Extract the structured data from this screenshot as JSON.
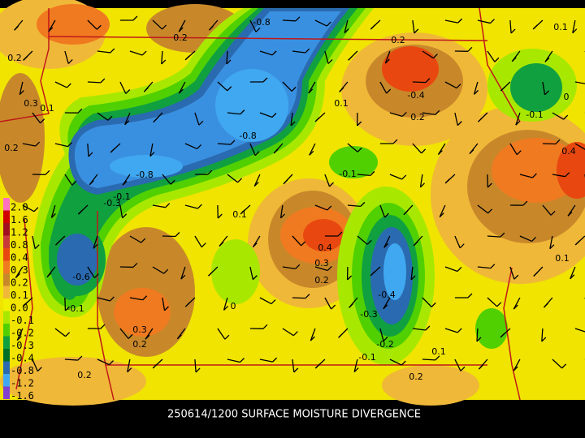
{
  "title": "250614/1200 SURFACE MOISTURE DIVERGENCE",
  "color_scale": {
    "labels": [
      "2.0",
      "1.6",
      "1.2",
      "0.8",
      "0.4",
      "0.3",
      "0.2",
      "0.1",
      "0.0",
      "-0.1",
      "-0.2",
      "-0.3",
      "-0.4",
      "-0.8",
      "-1.2",
      "-1.6"
    ],
    "colors": [
      "#ff70c0",
      "#d00000",
      "#a01020",
      "#c83838",
      "#e84810",
      "#f07a20",
      "#c8882a",
      "#f0b838",
      "#f0f000",
      "#a8e800",
      "#50d000",
      "#10a040",
      "#007028",
      "#2a6ab0",
      "#40a8f0",
      "#8040d0"
    ]
  },
  "contour_labels": [
    "-0.8",
    "0.2",
    "0.1",
    "0.2",
    "0.2",
    "0.3",
    "0.1",
    "0.1",
    "-0.4",
    "0",
    "-0.8",
    "-0.1",
    "0.2",
    "0.2",
    "-0.8",
    "-0.1",
    "0.4",
    "-0.1",
    "-0.3",
    "0.1",
    "0.4",
    "-0.6",
    "0.3",
    "0.2",
    "0.1",
    "-0.4",
    "-0.1",
    "0",
    "-0.3",
    "0.3",
    "0.2",
    "-0.2",
    "0.1",
    "-0.1",
    "0.2",
    "0.2"
  ]
}
